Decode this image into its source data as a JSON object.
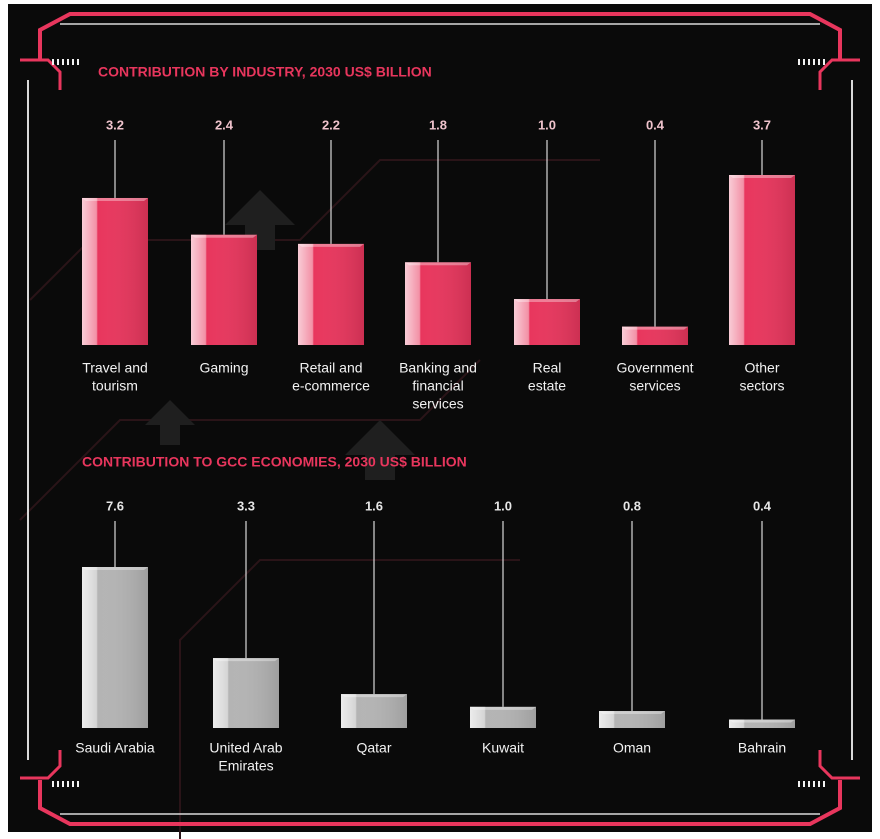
{
  "chart_data": [
    {
      "type": "bar3d",
      "title": "CONTRIBUTION BY INDUSTRY, 2030 US$ BILLION",
      "categories": [
        [
          "Travel and",
          "tourism"
        ],
        [
          "Gaming"
        ],
        [
          "Retail and",
          "e-commerce"
        ],
        [
          "Banking and",
          "financial",
          "services"
        ],
        [
          "Real",
          "estate"
        ],
        [
          "Government",
          "services"
        ],
        [
          "Other",
          "sectors"
        ]
      ],
      "values": [
        3.2,
        2.4,
        2.2,
        1.8,
        1.0,
        0.4,
        3.7
      ],
      "value_labels": [
        "3.2",
        "2.4",
        "2.2",
        "1.8",
        "1.0",
        "0.4",
        "3.7"
      ],
      "color": "#e8365d",
      "label_color": "#efc3cc"
    },
    {
      "type": "bar3d",
      "title": "CONTRIBUTION TO GCC ECONOMIES, 2030 US$ BILLION",
      "categories": [
        [
          "Saudi Arabia"
        ],
        [
          "United Arab",
          "Emirates"
        ],
        [
          "Qatar"
        ],
        [
          "Kuwait"
        ],
        [
          "Oman"
        ],
        [
          "Bahrain"
        ]
      ],
      "values": [
        7.6,
        3.3,
        1.6,
        1.0,
        0.8,
        0.4
      ],
      "value_labels": [
        "7.6",
        "3.3",
        "1.6",
        "1.0",
        "0.8",
        "0.4"
      ],
      "color": "#b4b4b4",
      "label_color": "#e6e6e6"
    }
  ]
}
